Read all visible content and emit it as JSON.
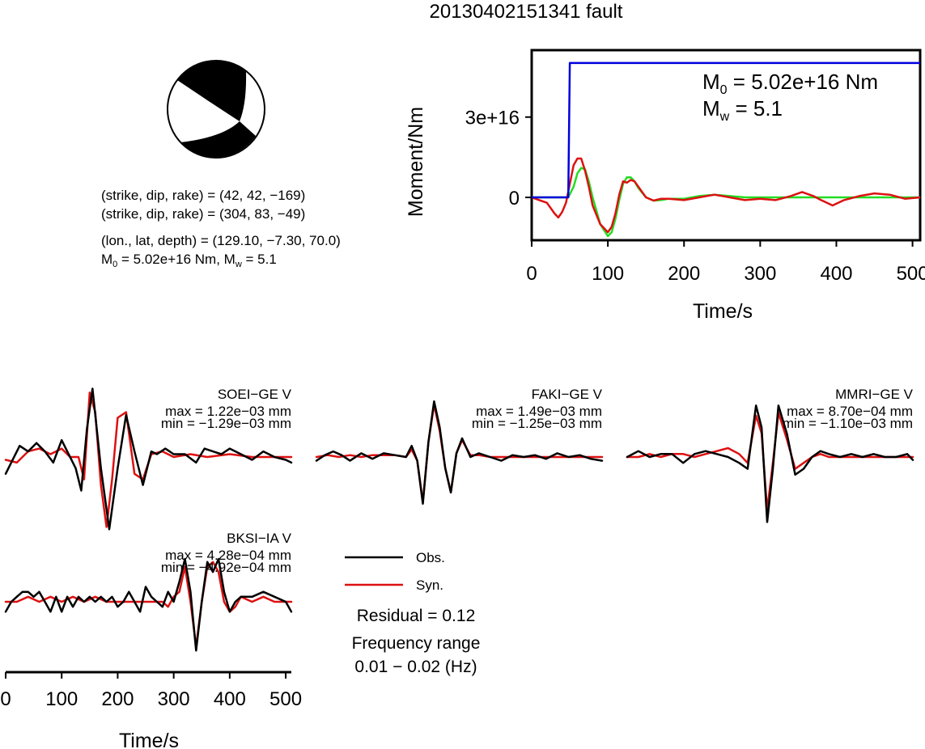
{
  "title": "20130402151341 fault",
  "mechanism": {
    "line1": "(strike, dip, rake) = (42, 42, −169)",
    "line2": "(strike, dip, rake) = (304, 83, −49)",
    "line3": "(lon., lat, depth) = (129.10, −7.30, 70.0)",
    "line4_m0": "M",
    "line4_m0_sub": "0",
    "line4_mid": " = 5.02e+16 Nm, M",
    "line4_mw_sub": "w",
    "line4_end": " = 5.1"
  },
  "moment_panel": {
    "ylabel": "Moment/Nm",
    "xlabel": "Time/s",
    "ytick_labels": [
      "3e+16",
      "0"
    ],
    "xtick_labels": [
      "0",
      "100",
      "200",
      "300",
      "400",
      "500"
    ],
    "m0_prefix": "M",
    "m0_sub": "0",
    "m0_text": " = 5.02e+16 Nm",
    "mw_prefix": "M",
    "mw_sub": "w",
    "mw_text": " = 5.1"
  },
  "stations": [
    {
      "name": "SOEI−GE V",
      "max": "max = 1.22e−03 mm",
      "min": "min = −1.29e−03 mm"
    },
    {
      "name": "FAKI−GE V",
      "max": "max = 1.49e−03 mm",
      "min": "min = −1.25e−03 mm"
    },
    {
      "name": "MMRI−GE V",
      "max": "max = 8.70e−04 mm",
      "min": "min = −1.10e−03 mm"
    },
    {
      "name": "BKSI−IA V",
      "max": "max = 4.28e−04 mm",
      "min": "min = −4.92e−04 mm"
    }
  ],
  "waveform_axis": {
    "xlabel": "Time/s",
    "xtick_labels": [
      "0",
      "100",
      "200",
      "300",
      "400",
      "500"
    ]
  },
  "legend": {
    "obs": "Obs.",
    "syn": "Syn.",
    "residual": "Residual = 0.12",
    "freq_title": "Frequency range",
    "freq_value": "0.01 − 0.02 (Hz)"
  },
  "colors": {
    "observed": "#000000",
    "synthetic": "#dd1111",
    "cumulative_moment": "#0000dd",
    "green_curve": "#22dd22"
  },
  "chart_data": [
    {
      "type": "line",
      "title": "",
      "xlabel": "Time/s",
      "ylabel": "Moment/Nm",
      "xlim": [
        0,
        510
      ],
      "ylim": [
        -1.6e+16,
        5.5e+16
      ],
      "yticks": [
        0,
        3e+16
      ],
      "xticks": [
        0,
        100,
        200,
        300,
        400,
        500
      ],
      "series": [
        {
          "color": "blue",
          "x": [
            0,
            48,
            50,
            510
          ],
          "y": [
            0,
            0,
            5.02e+16,
            5.02e+16
          ]
        },
        {
          "color": "red",
          "x": [
            0,
            10,
            20,
            30,
            35,
            40,
            45,
            50,
            55,
            60,
            65,
            70,
            75,
            80,
            90,
            100,
            105,
            110,
            115,
            120,
            125,
            130,
            135,
            140,
            150,
            160,
            170,
            180,
            200,
            220,
            240,
            260,
            280,
            300,
            320,
            340,
            355,
            370,
            380,
            395,
            410,
            430,
            450,
            470,
            490,
            510
          ],
          "y": [
            0,
            -1000000000000000.0,
            -2000000000000000.0,
            -6000000000000000.0,
            -7500000000000000.0,
            -5500000000000000.0,
            -2000000000000000.0,
            5000000000000000.0,
            1.2e+16,
            1.45e+16,
            1.45e+16,
            1e+16,
            4000000000000000.0,
            -3000000000000000.0,
            -1e+16,
            -1.3e+16,
            -1.1e+16,
            -6000000000000000.0,
            1000000000000000.0,
            6000000000000000.0,
            5500000000000000.0,
            6500000000000000.0,
            6000000000000000.0,
            4000000000000000.0,
            0,
            -1200000000000000.0,
            -500000000000000.0,
            -500000000000000.0,
            -1000000000000000.0,
            0,
            1000000000000000.0,
            0,
            -1000000000000000.0,
            -500000000000000.0,
            -1000000000000000.0,
            500000000000000.0,
            2000000000000000.0,
            500000000000000.0,
            -1000000000000000.0,
            -3000000000000000.0,
            -1000000000000000.0,
            500000000000000.0,
            1500000000000000.0,
            1000000000000000.0,
            -500000000000000.0,
            0
          ]
        },
        {
          "color": "green",
          "x": [
            0,
            48,
            55,
            60,
            65,
            70,
            75,
            80,
            90,
            100,
            105,
            110,
            115,
            120,
            125,
            130,
            135,
            140,
            150,
            160,
            170,
            180,
            200,
            220,
            240,
            260,
            280,
            300,
            510
          ],
          "y": [
            0,
            0,
            4000000000000000.0,
            9000000000000000.0,
            1.1e+16,
            1.05e+16,
            6000000000000000.0,
            0,
            -1e+16,
            -1.45e+16,
            -1.3e+16,
            -8000000000000000.0,
            -1000000000000000.0,
            5000000000000000.0,
            7500000000000000.0,
            7500000000000000.0,
            6000000000000000.0,
            3500000000000000.0,
            0,
            -1200000000000000.0,
            -1000000000000000.0,
            -500000000000000.0,
            -500000000000000.0,
            500000000000000.0,
            1000000000000000.0,
            500000000000000.0,
            0,
            0,
            0
          ]
        }
      ]
    },
    {
      "type": "line",
      "title": "SOEI−GE V",
      "xlim": [
        0,
        510
      ],
      "series": [
        {
          "name": "Obs.",
          "x": [
            0,
            10,
            25,
            40,
            55,
            70,
            85,
            100,
            110,
            125,
            135,
            145,
            155,
            170,
            185,
            200,
            215,
            230,
            245,
            260,
            270,
            285,
            300,
            320,
            340,
            355,
            370,
            385,
            400,
            420,
            440,
            460,
            480,
            500,
            510
          ],
          "y": [
            -0.3,
            -0.1,
            0.2,
            0.1,
            0.25,
            0.1,
            -0.1,
            0.3,
            0.1,
            -0.2,
            -0.6,
            0.5,
            1.22,
            -0.2,
            -1.29,
            -0.2,
            0.75,
            0.1,
            -0.5,
            0.1,
            0.05,
            0.15,
            0.05,
            0.05,
            -0.1,
            0.15,
            0.1,
            0.05,
            0.15,
            0.05,
            -0.05,
            0.1,
            0.0,
            -0.05,
            -0.1
          ]
        },
        {
          "name": "Syn.",
          "x": [
            0,
            20,
            40,
            60,
            80,
            100,
            115,
            130,
            140,
            150,
            160,
            170,
            180,
            190,
            200,
            215,
            230,
            245,
            260,
            280,
            300,
            330,
            360,
            400,
            440,
            480,
            510
          ],
          "y": [
            -0.05,
            -0.1,
            0.1,
            0.15,
            0.05,
            0.15,
            0.0,
            0.0,
            -0.4,
            1.15,
            0.8,
            -0.5,
            -1.25,
            -0.4,
            0.7,
            0.8,
            -0.3,
            -0.4,
            0.05,
            0.1,
            0.0,
            0.05,
            0.0,
            0.05,
            0.0,
            0.0,
            0.0
          ]
        }
      ]
    },
    {
      "type": "line",
      "title": "FAKI−GE V",
      "xlim": [
        0,
        510
      ],
      "series": [
        {
          "name": "Obs.",
          "x": [
            0,
            15,
            30,
            45,
            60,
            80,
            100,
            120,
            140,
            160,
            170,
            180,
            190,
            200,
            210,
            220,
            230,
            240,
            250,
            260,
            275,
            290,
            310,
            330,
            350,
            370,
            390,
            410,
            430,
            450,
            470,
            490,
            510
          ],
          "y": [
            -0.1,
            0.05,
            0.15,
            0.05,
            -0.1,
            0.1,
            -0.05,
            0.1,
            0.05,
            0.0,
            0.3,
            -0.1,
            -1.25,
            0.4,
            1.49,
            0.8,
            -0.3,
            -0.95,
            0.1,
            0.5,
            0.0,
            0.1,
            0.0,
            -0.1,
            0.05,
            0.0,
            0.05,
            -0.05,
            0.1,
            0.0,
            0.05,
            -0.05,
            -0.1
          ]
        },
        {
          "name": "Syn.",
          "x": [
            0,
            20,
            40,
            60,
            80,
            100,
            120,
            140,
            160,
            170,
            180,
            190,
            200,
            210,
            220,
            230,
            240,
            250,
            260,
            275,
            290,
            310,
            330,
            360,
            400,
            440,
            480,
            510
          ],
          "y": [
            0.0,
            0.05,
            0.0,
            0.05,
            0.0,
            0.05,
            0.05,
            0.05,
            0.0,
            0.2,
            -0.1,
            -1.2,
            0.4,
            1.4,
            0.7,
            -0.3,
            -0.95,
            0.1,
            0.45,
            0.05,
            0.05,
            0.0,
            0.0,
            0.0,
            0.0,
            0.0,
            0.0,
            0.0
          ]
        }
      ]
    },
    {
      "type": "line",
      "title": "MMRI−GE V",
      "xlim": [
        0,
        510
      ],
      "series": [
        {
          "name": "Obs.",
          "x": [
            0,
            20,
            40,
            60,
            80,
            100,
            120,
            140,
            160,
            180,
            200,
            215,
            230,
            240,
            250,
            260,
            270,
            285,
            300,
            315,
            330,
            345,
            360,
            380,
            400,
            420,
            440,
            460,
            480,
            500,
            510
          ],
          "y": [
            0.0,
            0.1,
            0.0,
            0.05,
            0.05,
            -0.1,
            0.05,
            0.1,
            0.05,
            0.0,
            -0.1,
            -0.2,
            0.87,
            0.5,
            -1.1,
            -0.2,
            0.87,
            0.4,
            -0.3,
            -0.2,
            0.0,
            0.1,
            0.05,
            0.0,
            0.05,
            0.0,
            0.05,
            0.0,
            0.0,
            0.05,
            -0.05
          ]
        },
        {
          "name": "Syn.",
          "x": [
            0,
            20,
            40,
            60,
            80,
            100,
            120,
            140,
            160,
            180,
            200,
            215,
            230,
            240,
            250,
            260,
            270,
            285,
            300,
            315,
            330,
            345,
            360,
            380,
            400,
            440,
            480,
            510
          ],
          "y": [
            0.0,
            0.0,
            0.05,
            0.0,
            0.05,
            0.05,
            0.0,
            0.05,
            0.1,
            0.15,
            0.05,
            -0.1,
            0.7,
            0.4,
            -0.9,
            -0.1,
            0.75,
            0.3,
            -0.2,
            -0.1,
            0.0,
            0.05,
            0.0,
            0.0,
            0.0,
            0.0,
            0.0,
            0.0
          ]
        }
      ]
    },
    {
      "type": "line",
      "title": "BKSI−IA V",
      "xlim": [
        0,
        510
      ],
      "xlabel": "Time/s",
      "xticks": [
        0,
        100,
        200,
        300,
        400,
        500
      ],
      "series": [
        {
          "name": "Obs.",
          "x": [
            0,
            10,
            20,
            30,
            40,
            50,
            60,
            70,
            80,
            90,
            100,
            110,
            120,
            130,
            140,
            150,
            160,
            170,
            180,
            190,
            200,
            210,
            220,
            230,
            240,
            250,
            260,
            270,
            280,
            290,
            300,
            310,
            320,
            330,
            340,
            350,
            360,
            370,
            380,
            390,
            400,
            410,
            420,
            440,
            460,
            480,
            500,
            510
          ],
          "y": [
            -0.1,
            0.0,
            0.05,
            0.1,
            0.1,
            0.05,
            0.1,
            0.0,
            -0.1,
            0.05,
            -0.1,
            0.05,
            -0.05,
            0.05,
            0.0,
            0.05,
            0.0,
            0.05,
            0.0,
            0.05,
            -0.05,
            0.0,
            0.1,
            0.0,
            -0.1,
            0.15,
            0.05,
            0.0,
            -0.05,
            0.1,
            0.0,
            0.2,
            0.43,
            0.1,
            -0.49,
            0.0,
            0.4,
            0.3,
            0.43,
            0.1,
            -0.1,
            0.0,
            0.05,
            0.05,
            0.1,
            0.05,
            0.0,
            -0.1
          ]
        },
        {
          "name": "Syn.",
          "x": [
            0,
            20,
            40,
            60,
            80,
            100,
            120,
            140,
            160,
            180,
            200,
            220,
            240,
            260,
            280,
            290,
            300,
            310,
            320,
            330,
            340,
            350,
            360,
            370,
            380,
            390,
            400,
            410,
            420,
            440,
            460,
            480,
            500,
            510
          ],
          "y": [
            0.0,
            0.0,
            0.05,
            0.0,
            0.05,
            0.0,
            0.05,
            0.0,
            0.05,
            0.0,
            0.0,
            0.0,
            0.0,
            0.0,
            0.0,
            -0.05,
            0.05,
            0.1,
            0.35,
            0.0,
            -0.45,
            0.0,
            0.35,
            0.4,
            0.3,
            0.0,
            -0.1,
            -0.05,
            0.05,
            0.0,
            0.05,
            0.0,
            0.0,
            0.0
          ]
        }
      ]
    }
  ]
}
